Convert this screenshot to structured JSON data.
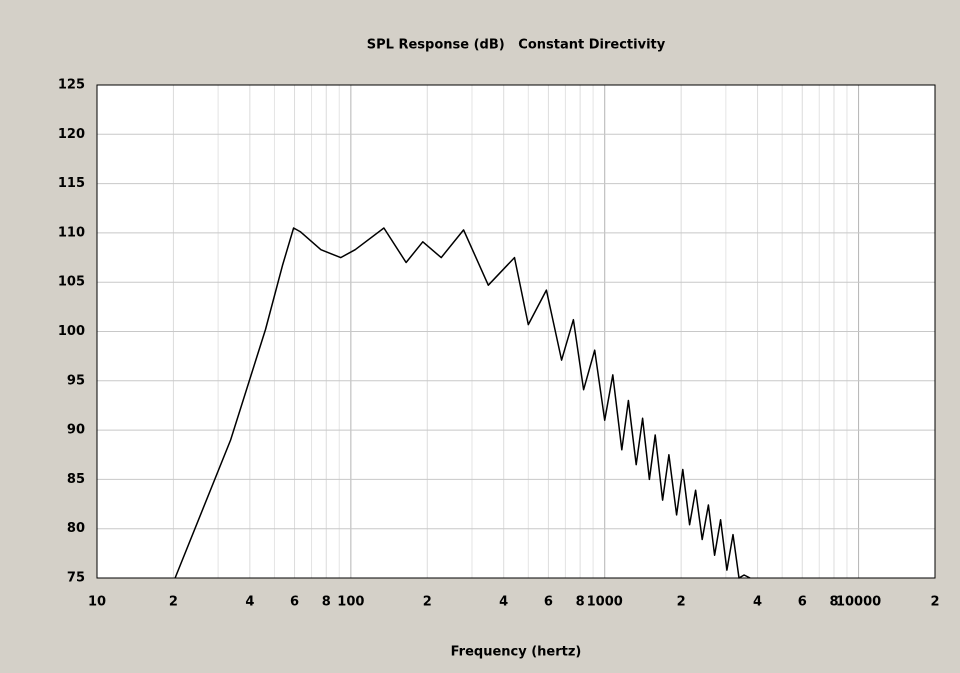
{
  "chart_data": {
    "type": "line",
    "title": "SPL Response (dB)   Constant Directivity",
    "x_label": "Frequency (hertz)",
    "log_x": true,
    "grid": true,
    "xlim": [
      10,
      20000
    ],
    "ylim": [
      75,
      125
    ],
    "xticks": [
      10,
      {
        "value": 20,
        "label": "2"
      },
      {
        "value": 40,
        "label": "4"
      },
      {
        "value": 60,
        "label": "6"
      },
      {
        "value": 80,
        "label": "8"
      },
      100,
      {
        "value": 200,
        "label": "2"
      },
      {
        "value": 400,
        "label": "4"
      },
      {
        "value": 600,
        "label": "6"
      },
      {
        "value": 800,
        "label": "8"
      },
      1000,
      {
        "value": 2000,
        "label": "2"
      },
      {
        "value": 4000,
        "label": "4"
      },
      {
        "value": 6000,
        "label": "6"
      },
      {
        "value": 8000,
        "label": "8"
      },
      10000,
      {
        "value": 20000,
        "label": "2"
      }
    ],
    "x_minor_gridlines": [
      30,
      50,
      70,
      90,
      300,
      500,
      700,
      900,
      3000,
      5000,
      7000,
      9000
    ],
    "yticks": [
      75,
      80,
      85,
      90,
      95,
      100,
      105,
      110,
      115,
      120,
      125
    ],
    "series": [
      {
        "color": "#000000",
        "x": [
          20.3,
          33.6,
          46.1,
          53.8,
          59.5,
          63.4,
          76.2,
          91.2,
          104,
          135,
          165,
          192,
          227,
          278,
          348,
          441,
          500,
          589,
          676,
          753,
          826,
          913,
          1000,
          1076,
          1168,
          1240,
          1330,
          1410,
          1500,
          1580,
          1690,
          1790,
          1920,
          2030,
          2160,
          2280,
          2420,
          2560,
          2710,
          2860,
          3030,
          3200,
          3380,
          3540,
          3740
        ],
        "values": [
          75,
          89,
          100.2,
          106.7,
          110.5,
          110.1,
          108.3,
          107.5,
          108.3,
          110.5,
          107,
          109.1,
          107.5,
          110.3,
          104.7,
          107.5,
          100.7,
          104.2,
          97.1,
          101.2,
          94.1,
          98.1,
          91,
          95.6,
          88,
          93,
          86.5,
          91.2,
          85,
          89.5,
          82.9,
          87.5,
          81.4,
          86,
          80.4,
          83.9,
          78.9,
          82.4,
          77.3,
          80.9,
          75.8,
          79.4,
          75,
          75.3,
          75
        ]
      }
    ]
  }
}
